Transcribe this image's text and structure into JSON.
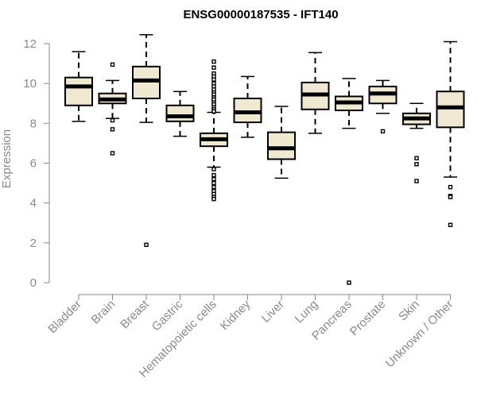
{
  "chart_data": {
    "type": "boxplot",
    "title": "ENSG00000187535 - IFT140",
    "ylabel": "Expression",
    "xlabel": "",
    "ylim": [
      0,
      12
    ],
    "yticks": [
      0,
      2,
      4,
      6,
      8,
      10,
      12
    ],
    "grid": false,
    "legend": "none",
    "colors": {
      "box_fill": "#efe9d2",
      "box_stroke": "#000000",
      "axis": "#8a8a8a",
      "title": "#000000"
    },
    "categories": [
      "Bladder",
      "Brain",
      "Breast",
      "Gastric",
      "Hematopoietic cells",
      "Kidney",
      "Liver",
      "Lung",
      "Pancreas",
      "Prostate",
      "Skin",
      "Unknown / Other"
    ],
    "boxes": [
      {
        "category": "Bladder",
        "whisker_low": 8.1,
        "q1": 8.9,
        "median": 9.85,
        "q3": 10.3,
        "whisker_high": 11.6,
        "outliers": []
      },
      {
        "category": "Brain",
        "whisker_low": 8.25,
        "q1": 9.0,
        "median": 9.2,
        "q3": 9.5,
        "whisker_high": 10.15,
        "outliers": [
          10.95,
          8.15,
          7.7,
          6.5
        ]
      },
      {
        "category": "Breast",
        "whisker_low": 8.05,
        "q1": 9.25,
        "median": 10.15,
        "q3": 10.85,
        "whisker_high": 12.45,
        "outliers": [
          1.9
        ]
      },
      {
        "category": "Gastric",
        "whisker_low": 7.35,
        "q1": 8.1,
        "median": 8.35,
        "q3": 8.9,
        "whisker_high": 9.6,
        "outliers": []
      },
      {
        "category": "Hematopoietic cells",
        "whisker_low": 5.8,
        "q1": 6.85,
        "median": 7.2,
        "q3": 7.5,
        "whisker_high": 8.55,
        "outliers": [
          11.1,
          10.8,
          10.5,
          10.35,
          10.2,
          10.0,
          9.85,
          9.7,
          9.55,
          9.45,
          9.3,
          9.2,
          9.05,
          8.95,
          8.8,
          8.7,
          8.6,
          5.7,
          5.4,
          5.2,
          5.0,
          4.8,
          4.6,
          4.45,
          4.3,
          4.2
        ]
      },
      {
        "category": "Kidney",
        "whisker_low": 7.3,
        "q1": 8.05,
        "median": 8.55,
        "q3": 9.25,
        "whisker_high": 10.35,
        "outliers": []
      },
      {
        "category": "Liver",
        "whisker_low": 5.25,
        "q1": 6.2,
        "median": 6.75,
        "q3": 7.55,
        "whisker_high": 8.85,
        "outliers": []
      },
      {
        "category": "Lung",
        "whisker_low": 7.5,
        "q1": 8.7,
        "median": 9.45,
        "q3": 10.05,
        "whisker_high": 11.55,
        "outliers": []
      },
      {
        "category": "Pancreas",
        "whisker_low": 7.75,
        "q1": 8.65,
        "median": 9.05,
        "q3": 9.35,
        "whisker_high": 10.25,
        "outliers": [
          0.0
        ]
      },
      {
        "category": "Prostate",
        "whisker_low": 8.5,
        "q1": 9.0,
        "median": 9.5,
        "q3": 9.85,
        "whisker_high": 10.15,
        "outliers": [
          7.6
        ]
      },
      {
        "category": "Skin",
        "whisker_low": 7.75,
        "q1": 7.95,
        "median": 8.25,
        "q3": 8.5,
        "whisker_high": 9.0,
        "outliers": [
          6.25,
          5.95,
          5.1
        ]
      },
      {
        "category": "Unknown / Other",
        "whisker_low": 5.3,
        "q1": 7.8,
        "median": 8.8,
        "q3": 9.6,
        "whisker_high": 12.1,
        "outliers": [
          4.8,
          4.35,
          4.3,
          2.9
        ]
      }
    ]
  }
}
